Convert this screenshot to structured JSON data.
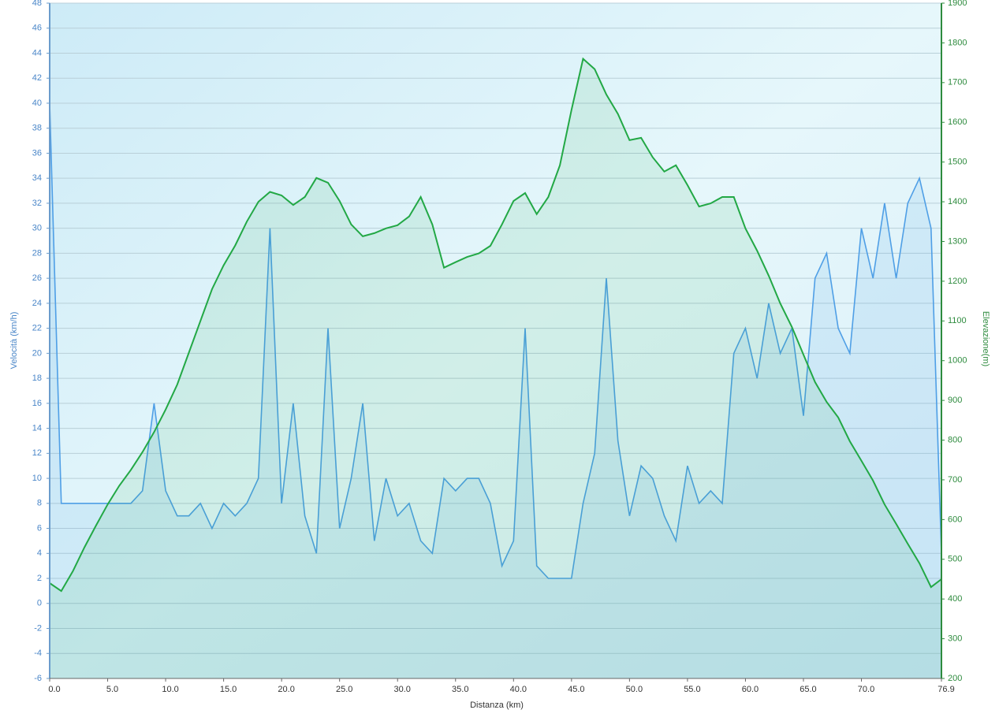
{
  "chart_data": {
    "type": "line",
    "x_label": "Distanza  (km)",
    "y_label": "Velocità (km/h)",
    "y2_label": "Elevazione(m)",
    "x": [
      0,
      1,
      2,
      3,
      4,
      5,
      6,
      7,
      8,
      9,
      10,
      11,
      12,
      13,
      14,
      15,
      16,
      17,
      18,
      19,
      20,
      21,
      22,
      23,
      24,
      25,
      26,
      27,
      28,
      29,
      30,
      31,
      32,
      33,
      34,
      35,
      36,
      37,
      38,
      39,
      40,
      41,
      42,
      43,
      44,
      45,
      46,
      47,
      48,
      49,
      50,
      51,
      52,
      53,
      54,
      55,
      56,
      57,
      58,
      59,
      60,
      61,
      62,
      63,
      64,
      65,
      66,
      67,
      68,
      69,
      70,
      71,
      72,
      73,
      74,
      75,
      76,
      76.9
    ],
    "series": [
      {
        "color": "#4f9fe6",
        "values": [
          40,
          8,
          8,
          8,
          8,
          8,
          8,
          8,
          9,
          16,
          9,
          7,
          7,
          8,
          6,
          8,
          7,
          8,
          10,
          30,
          8,
          16,
          7,
          4,
          22,
          6,
          10,
          16,
          5,
          10,
          7,
          8,
          5,
          4,
          10,
          9,
          10,
          10,
          8,
          3,
          5,
          22,
          3,
          2,
          2,
          2,
          8,
          12,
          26,
          13,
          7,
          11,
          10,
          7,
          5,
          11,
          8,
          9,
          8,
          20,
          22,
          18,
          24,
          20,
          22,
          15,
          26,
          28,
          22,
          20,
          30,
          26,
          32,
          26,
          32,
          34,
          30,
          4
        ]
      },
      {
        "color": "#22a845",
        "axis": "y2",
        "values": [
          440,
          420,
          470,
          530,
          585,
          638,
          685,
          725,
          770,
          820,
          877,
          940,
          1020,
          1100,
          1180,
          1240,
          1290,
          1350,
          1400,
          1425,
          1416,
          1392,
          1412,
          1460,
          1448,
          1402,
          1343,
          1313,
          1321,
          1333,
          1341,
          1363,
          1412,
          1343,
          1234,
          1248,
          1261,
          1270,
          1289,
          1343,
          1402,
          1422,
          1369,
          1412,
          1492,
          1631,
          1760,
          1734,
          1670,
          1621,
          1555,
          1561,
          1512,
          1476,
          1492,
          1442,
          1388,
          1396,
          1412,
          1412,
          1333,
          1277,
          1214,
          1144,
          1085,
          1015,
          946,
          896,
          857,
          797,
          748,
          698,
          638,
          589,
          539,
          490,
          430,
          450
        ]
      }
    ],
    "xlim": [
      0,
      76.9
    ],
    "xticks": [
      {
        "value": 0,
        "label": "0.0"
      },
      {
        "value": 5,
        "label": "5.0"
      },
      {
        "value": 10,
        "label": "10.0"
      },
      {
        "value": 15,
        "label": "15.0"
      },
      {
        "value": 20,
        "label": "20.0"
      },
      {
        "value": 25,
        "label": "25.0"
      },
      {
        "value": 30,
        "label": "30.0"
      },
      {
        "value": 35,
        "label": "35.0"
      },
      {
        "value": 40,
        "label": "40.0"
      },
      {
        "value": 45,
        "label": "45.0"
      },
      {
        "value": 50,
        "label": "50.0"
      },
      {
        "value": 55,
        "label": "55.0"
      },
      {
        "value": 60,
        "label": "60.0"
      },
      {
        "value": 65,
        "label": "65.0"
      },
      {
        "value": 70,
        "label": "70.0"
      },
      76.9
    ],
    "ylim": [
      -6,
      48
    ],
    "yticks": [
      -6,
      -4,
      -2,
      0,
      2,
      4,
      6,
      8,
      10,
      12,
      14,
      16,
      18,
      20,
      22,
      24,
      26,
      28,
      30,
      32,
      34,
      36,
      38,
      40,
      42,
      44,
      46,
      48
    ],
    "y2lim": [
      200,
      1900
    ],
    "y2ticks": [
      200,
      300,
      400,
      500,
      600,
      700,
      800,
      900,
      1000,
      1100,
      1200,
      1300,
      1400,
      1500,
      1600,
      1700,
      1800,
      1900
    ],
    "grid": true
  }
}
